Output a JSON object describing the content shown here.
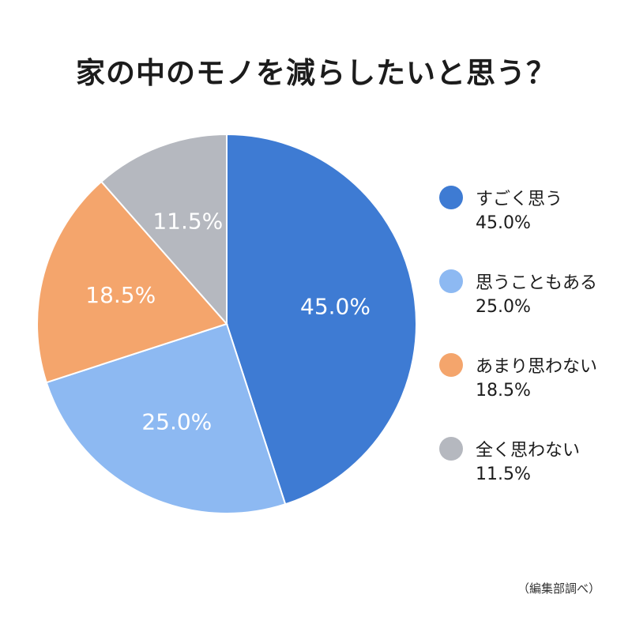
{
  "chart_data": {
    "type": "pie",
    "title": "家の中のモノを減らしたいと思う？",
    "categories": [
      "すごく思う",
      "思うこともある",
      "あまり思わない",
      "全く思わない"
    ],
    "values": [
      45.0,
      25.0,
      18.5,
      11.5
    ],
    "value_labels": [
      "45.0%",
      "25.0%",
      "18.5%",
      "11.5%"
    ],
    "colors": [
      "#3e7bd3",
      "#8db9f2",
      "#f4a56c",
      "#b5b8bf"
    ],
    "start_angle_deg": 0,
    "direction": "clockwise",
    "legend_position": "right"
  },
  "legend": {
    "items": [
      {
        "name": "すごく思う",
        "value": "45.0%",
        "color": "#3e7bd3"
      },
      {
        "name": "思うこともある",
        "value": "25.0%",
        "color": "#8db9f2"
      },
      {
        "name": "あまり思わない",
        "value": "18.5%",
        "color": "#f4a56c"
      },
      {
        "name": "全く思わない",
        "value": "11.5%",
        "color": "#b5b8bf"
      }
    ]
  },
  "source_note": "（編集部調べ）"
}
